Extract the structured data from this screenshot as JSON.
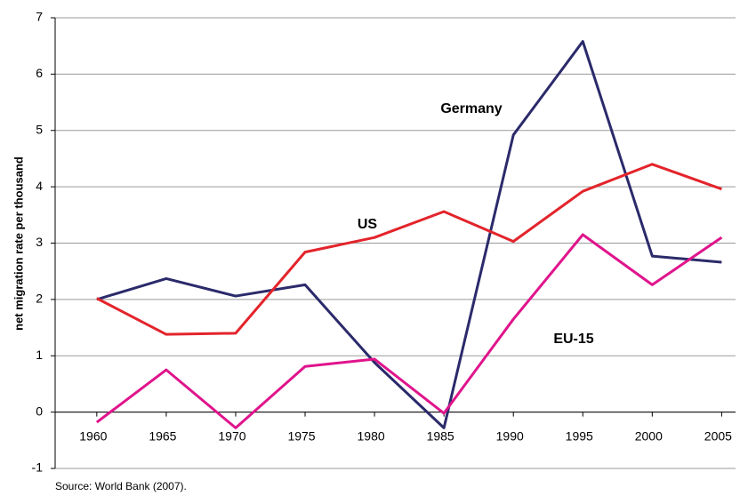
{
  "chart_data": {
    "type": "line",
    "y_label": "net migration rate per thousand",
    "source": "Source: World Bank (2007).",
    "x": [
      1960,
      1965,
      1970,
      1975,
      1980,
      1985,
      1990,
      1995,
      2000,
      2005
    ],
    "xlim": [
      1957,
      2006
    ],
    "xticks": [
      1960,
      1965,
      1970,
      1975,
      1980,
      1985,
      1990,
      1995,
      2000,
      2005
    ],
    "ylim": [
      -1,
      7
    ],
    "yticks": [
      -1,
      0,
      1,
      2,
      3,
      4,
      5,
      6,
      7
    ],
    "grid": true,
    "series": [
      {
        "name": "Germany",
        "color": "#2b2a6b",
        "values": [
          2.0,
          2.37,
          2.06,
          2.26,
          0.88,
          -0.28,
          4.92,
          6.58,
          2.77,
          2.66
        ]
      },
      {
        "name": "US",
        "color": "#e3242b",
        "values": [
          2.02,
          1.38,
          1.4,
          2.84,
          3.1,
          3.56,
          3.03,
          3.92,
          4.4,
          3.96
        ]
      },
      {
        "name": "EU-15",
        "color": "#e0148c",
        "values": [
          -0.18,
          0.75,
          -0.28,
          0.81,
          0.94,
          -0.02,
          1.65,
          3.15,
          2.26,
          3.1
        ]
      }
    ]
  }
}
